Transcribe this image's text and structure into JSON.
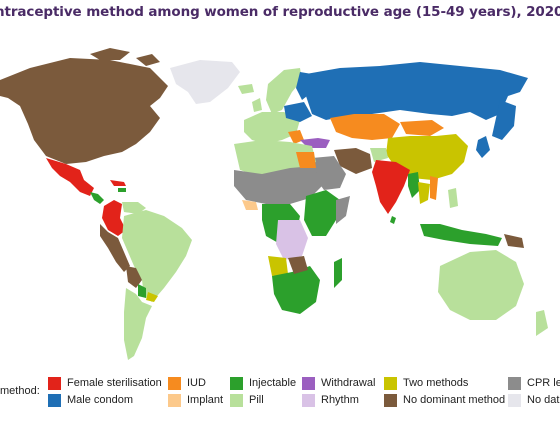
{
  "title": "ntraceptive method among women of reproductive age (15-49 years), 2020",
  "legend": {
    "label": "method:",
    "items": [
      {
        "label": "Female sterilisation",
        "color": "#e2231a"
      },
      {
        "label": "Male condom",
        "color": "#1f6fb5"
      },
      {
        "label": "IUD",
        "color": "#f68b1f"
      },
      {
        "label": "Implant",
        "color": "#fcc98b"
      },
      {
        "label": "Injectable",
        "color": "#2ca02c"
      },
      {
        "label": "Pill",
        "color": "#b8e09b"
      },
      {
        "label": "Withdrawal",
        "color": "#9b5fc0"
      },
      {
        "label": "Rhythm",
        "color": "#d9c2e6"
      },
      {
        "label": "Two methods",
        "color": "#c9c400"
      },
      {
        "label": "No dominant method",
        "color": "#7b5a3c"
      },
      {
        "label": "CPR le",
        "color": "#8c8c8c"
      },
      {
        "label": "No dat",
        "color": "#e6e6ec"
      }
    ]
  }
}
